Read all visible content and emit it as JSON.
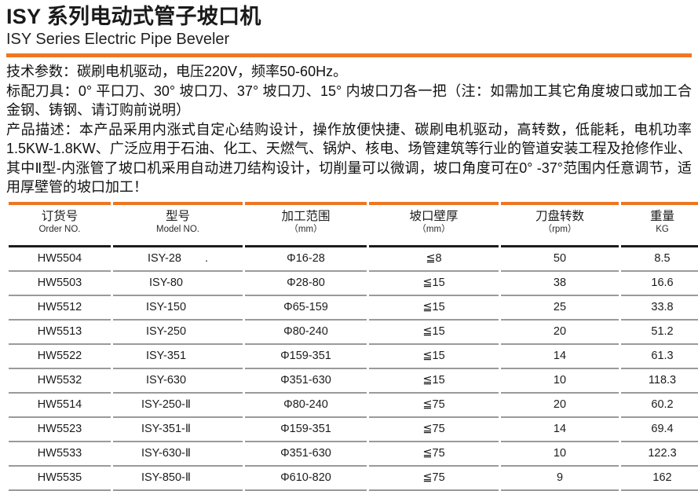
{
  "header": {
    "title": "ISY 系列电动式管子坡口机",
    "subtitle": "ISY Series Electric Pipe Beveler",
    "accent_color": "#EE7622"
  },
  "intro": {
    "tech_params": "技术参数：碳刷电机驱动，电压220V，频率50-60Hz。",
    "standard_tools": "标配刀具：0° 平口刀、30° 坡口刀、37° 坡口刀、15° 内坡口刀各一把（注：如需加工其它角度坡口或加工合金钢、铸钢、请订购前说明）",
    "description": "产品描述：本产品采用内涨式自定心结购设计，操作放便快捷、碳刷电机驱动，高转数，低能耗，电机功率1.5KW-1.8KW、广泛应用于石油、化工、天燃气、锅炉、核电、场管建筑等行业的管道安装工程及抢修作业、其中Ⅱ型-内涨管了坡口机采用自动进刀结构设计，切削量可以微调，坡口角度可在0° -37°范围内任意调节，适用厚壁管的坡口加工！"
  },
  "table": {
    "line_color": "#9a9a9a",
    "header_line_color": "#1c1c1c",
    "columns": [
      {
        "zh": "订货号",
        "en": "Order NO."
      },
      {
        "zh": "型号",
        "en": "Model NO."
      },
      {
        "zh": "加工范围",
        "en": "（mm）"
      },
      {
        "zh": "坡口壁厚",
        "en": "（mm）"
      },
      {
        "zh": "刀盘转数",
        "en": "（rpm）"
      },
      {
        "zh": "重量",
        "en": "KG"
      }
    ],
    "rows": [
      {
        "order": "HW5504",
        "model": "ISY-28",
        "note": ".",
        "range": "Φ16-28",
        "wall": "≦8",
        "rpm": "50",
        "weight": "8.5"
      },
      {
        "order": "HW5503",
        "model": "ISY-80",
        "note": "",
        "range": "Φ28-80",
        "wall": "≦15",
        "rpm": "38",
        "weight": "16.6"
      },
      {
        "order": "HW5512",
        "model": "ISY-150",
        "note": "",
        "range": "Φ65-159",
        "wall": "≦15",
        "rpm": "25",
        "weight": "33.8"
      },
      {
        "order": "HW5513",
        "model": "ISY-250",
        "note": "",
        "range": "Φ80-240",
        "wall": "≦15",
        "rpm": "20",
        "weight": "51.2"
      },
      {
        "order": "HW5522",
        "model": "ISY-351",
        "note": "",
        "range": "Φ159-351",
        "wall": "≦15",
        "rpm": "14",
        "weight": "61.3"
      },
      {
        "order": "HW5532",
        "model": "ISY-630",
        "note": "",
        "range": "Φ351-630",
        "wall": "≦15",
        "rpm": "10",
        "weight": "118.3"
      },
      {
        "order": "HW5514",
        "model": "ISY-250-Ⅱ",
        "note": "",
        "range": "Φ80-240",
        "wall": "≦75",
        "rpm": "20",
        "weight": "60.2"
      },
      {
        "order": "HW5523",
        "model": "ISY-351-Ⅱ",
        "note": "",
        "range": "Φ159-351",
        "wall": "≦75",
        "rpm": "14",
        "weight": "69.4"
      },
      {
        "order": "HW5533",
        "model": "ISY-630-Ⅱ",
        "note": "",
        "range": "Φ351-630",
        "wall": "≦75",
        "rpm": "10",
        "weight": "122.3"
      },
      {
        "order": "HW5535",
        "model": "ISY-850-Ⅱ",
        "note": "",
        "range": "Φ610-820",
        "wall": "≦75",
        "rpm": "9",
        "weight": "162"
      }
    ]
  }
}
